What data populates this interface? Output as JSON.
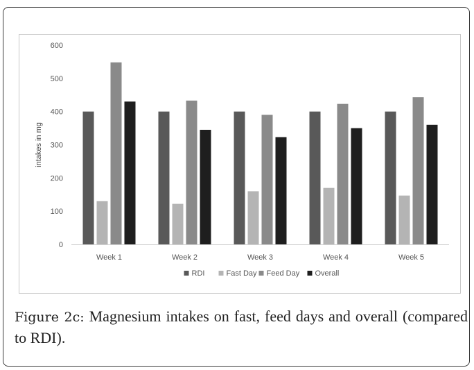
{
  "chart_data": {
    "type": "bar",
    "categories": [
      "Week 1",
      "Week 2",
      "Week 3",
      "Week 4",
      "Week 5"
    ],
    "series": [
      {
        "name": "RDI",
        "color": "#595959",
        "values": [
          400,
          400,
          400,
          400,
          400
        ]
      },
      {
        "name": "Fast Day",
        "color": "#b4b4b4",
        "values": [
          130,
          122,
          160,
          170,
          147
        ]
      },
      {
        "name": "Feed Day",
        "color": "#8a8a8a",
        "values": [
          548,
          433,
          390,
          423,
          443
        ]
      },
      {
        "name": "Overall",
        "color": "#1e1e1e",
        "values": [
          430,
          345,
          323,
          350,
          360
        ]
      }
    ],
    "ylabel": "intakes in mg",
    "xlabel": "",
    "ylim": [
      0,
      600
    ],
    "yticks": [
      0,
      100,
      200,
      300,
      400,
      500,
      600
    ],
    "grid": false,
    "legend_position": "bottom"
  },
  "caption": {
    "label": "Figure 2c:",
    "text": " Magnesium intakes on fast, feed days and overall (compared to RDI)."
  }
}
